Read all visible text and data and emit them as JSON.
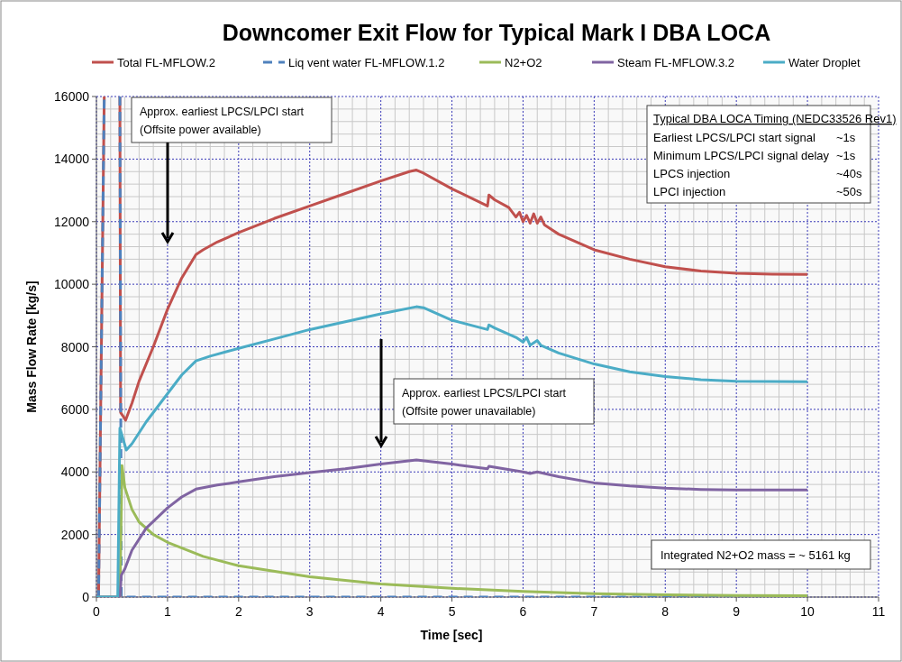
{
  "chart_data": {
    "type": "line",
    "title": "Downcomer Exit Flow for Typical Mark I DBA LOCA",
    "xlabel": "Time [sec]",
    "ylabel": "Mass Flow Rate [kg/s]",
    "xlim": [
      0,
      11
    ],
    "xticks": [
      0,
      1,
      2,
      3,
      4,
      5,
      6,
      7,
      8,
      9,
      10,
      11
    ],
    "ylim": [
      0,
      16000
    ],
    "yticks": [
      0,
      2000,
      4000,
      6000,
      8000,
      10000,
      12000,
      14000,
      16000
    ],
    "grid": true,
    "legend": "top",
    "marker": "none",
    "line_style": "solid",
    "series": [
      {
        "name": "Total FL-MFLOW.2",
        "color": "#c0504d",
        "x": [
          0,
          0.03,
          0.11,
          0.2,
          0.33,
          0.34,
          0.37,
          0.41,
          0.5,
          0.6,
          0.8,
          1.0,
          1.2,
          1.4,
          1.5,
          1.7,
          2,
          2.5,
          3,
          3.5,
          4,
          4.4,
          4.5,
          4.6,
          5,
          5.5,
          5.52,
          5.6,
          5.8,
          5.9,
          5.95,
          6.0,
          6.05,
          6.1,
          6.15,
          6.2,
          6.25,
          6.3,
          6.5,
          7,
          7.5,
          8,
          8.5,
          9,
          9.5,
          10
        ],
        "values": [
          0,
          0,
          16000,
          null,
          16000,
          5900,
          5800,
          5650,
          6200,
          6900,
          8000,
          9200,
          10200,
          10950,
          11100,
          11350,
          11650,
          12100,
          12500,
          12900,
          13300,
          13600,
          13650,
          13550,
          13050,
          12500,
          12850,
          12700,
          12450,
          12150,
          12300,
          12000,
          12200,
          11950,
          12250,
          11950,
          12150,
          11900,
          11600,
          11100,
          10800,
          10560,
          10420,
          10350,
          10320,
          10310
        ]
      },
      {
        "name": "Liq vent water FL-MFLOW.1.2",
        "color": "#4f81bd",
        "line_style": "dashed",
        "x": [
          0,
          0.03,
          0.11,
          0.2,
          0.33,
          0.35,
          1,
          2,
          3,
          4,
          5,
          6,
          7,
          8,
          9,
          10
        ],
        "values": [
          0,
          0,
          16000,
          null,
          16000,
          0,
          0,
          0,
          0,
          0,
          0,
          0,
          0,
          0,
          0,
          0
        ]
      },
      {
        "name": "N2+O2",
        "color": "#9bbb59",
        "x": [
          0,
          0.33,
          0.36,
          0.4,
          0.5,
          0.6,
          0.8,
          1,
          1.5,
          2,
          3,
          4,
          5,
          6,
          7,
          8,
          9,
          10
        ],
        "values": [
          0,
          0,
          4200,
          3500,
          2800,
          2400,
          2000,
          1750,
          1300,
          1000,
          650,
          420,
          280,
          180,
          110,
          70,
          50,
          40
        ]
      },
      {
        "name": "Steam FL-MFLOW.3.2",
        "color": "#8064a2",
        "x": [
          0,
          0.33,
          0.35,
          0.4,
          0.5,
          0.7,
          1,
          1.2,
          1.4,
          1.7,
          2,
          2.5,
          3,
          3.5,
          4,
          4.5,
          5,
          5.5,
          5.52,
          6,
          6.1,
          6.2,
          6.5,
          7,
          7.5,
          8,
          8.5,
          9,
          10
        ],
        "values": [
          0,
          0,
          700,
          900,
          1500,
          2200,
          2850,
          3200,
          3450,
          3580,
          3680,
          3850,
          3980,
          4100,
          4250,
          4380,
          4250,
          4100,
          4180,
          4000,
          3950,
          4000,
          3850,
          3650,
          3550,
          3480,
          3440,
          3420,
          3420
        ]
      },
      {
        "name": "Water Droplet",
        "color": "#4bacc6",
        "x": [
          0,
          0.3,
          0.33,
          0.42,
          0.5,
          0.7,
          1,
          1.2,
          1.4,
          1.6,
          2,
          2.5,
          3,
          3.5,
          4,
          4.5,
          4.6,
          5,
          5.5,
          5.52,
          5.6,
          5.9,
          6.0,
          6.05,
          6.1,
          6.2,
          6.25,
          6.5,
          7,
          7.5,
          8,
          8.5,
          9,
          10
        ],
        "values": [
          0,
          0,
          5400,
          4700,
          4900,
          5600,
          6500,
          7100,
          7550,
          7700,
          7950,
          8250,
          8550,
          8800,
          9050,
          9280,
          9250,
          8850,
          8550,
          8700,
          8600,
          8300,
          8150,
          8300,
          8050,
          8200,
          8050,
          7800,
          7450,
          7200,
          7050,
          6950,
          6900,
          6880
        ]
      }
    ],
    "annotations": [
      "Approx. earliest LPCS/LPCI start\n(Offsite power available)",
      "Approx. earliest LPCS/LPCI start\n(Offsite power unavailable)",
      "Typical DBA LOCA Timing (NEDC33526 Rev1)",
      "Earliest LPCS/LPCI start  signal",
      "~1s",
      "Minimum LPCS/LPCI signal delay",
      "~1s",
      "LPCS injection",
      "~40s",
      "LPCI injection",
      "~50s",
      "Integrated N2+O2 mass = ~ 5161 kg"
    ]
  }
}
